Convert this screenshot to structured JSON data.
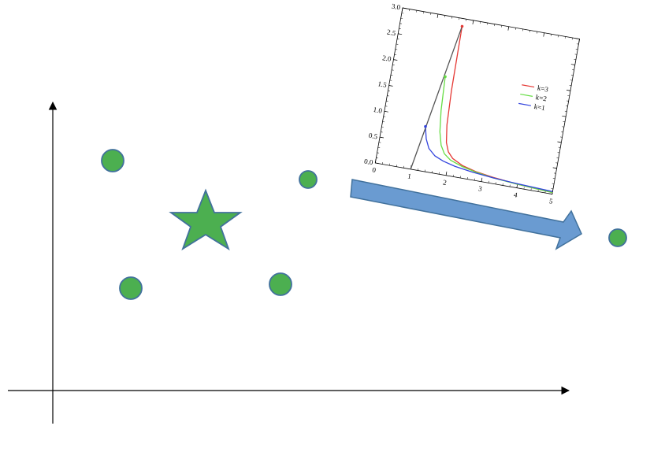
{
  "diagram": {
    "points_color": "#4caf50",
    "points_stroke": "#41719c",
    "star_color": "#4caf50",
    "arrow_fill": "#6a9bd1",
    "arrow_stroke": "#41719c",
    "axis_color": "#000000"
  },
  "chart_data": {
    "type": "line",
    "title": "",
    "xlabel": "",
    "ylabel": "",
    "xlim": [
      0,
      5
    ],
    "ylim": [
      0,
      3
    ],
    "x_ticks": [
      "0",
      "1",
      "2",
      "3",
      "4",
      "5"
    ],
    "y_ticks": [
      "0.0",
      "0.5",
      "1.0",
      "1.5",
      "2.0",
      "2.5",
      "3.0"
    ],
    "legend_position": "top-right",
    "series": [
      {
        "name": "k=3",
        "color": "#e53935",
        "x": [
          1.72,
          1.74,
          1.78,
          1.85,
          1.95,
          2.1,
          2.4,
          2.8,
          3.3,
          4.0,
          5.0
        ],
        "y": [
          2.85,
          1.6,
          0.95,
          0.62,
          0.45,
          0.34,
          0.24,
          0.17,
          0.12,
          0.07,
          0.03
        ]
      },
      {
        "name": "k=2",
        "color": "#66dd44",
        "x": [
          1.5,
          1.55,
          1.62,
          1.72,
          1.85,
          2.05,
          2.4,
          2.8,
          3.3,
          4.0,
          5.0
        ],
        "y": [
          1.85,
          1.2,
          0.8,
          0.55,
          0.4,
          0.3,
          0.22,
          0.16,
          0.11,
          0.07,
          0.03
        ]
      },
      {
        "name": "k=1",
        "color": "#3344dd",
        "x": [
          1.2,
          1.28,
          1.4,
          1.6,
          1.85,
          2.2,
          2.7,
          3.3,
          4.0,
          5.0
        ],
        "y": [
          0.85,
          0.62,
          0.45,
          0.33,
          0.26,
          0.2,
          0.15,
          0.11,
          0.08,
          0.05
        ]
      },
      {
        "name": "",
        "color": "#555555",
        "x": [
          1.0,
          1.72
        ],
        "y": [
          0.0,
          2.85
        ]
      }
    ],
    "markers": [
      {
        "x": 1.2,
        "y": 0.85,
        "color": "#3344dd"
      },
      {
        "x": 1.5,
        "y": 1.85,
        "color": "#66dd44"
      },
      {
        "x": 1.72,
        "y": 2.85,
        "color": "#e53935"
      }
    ]
  }
}
